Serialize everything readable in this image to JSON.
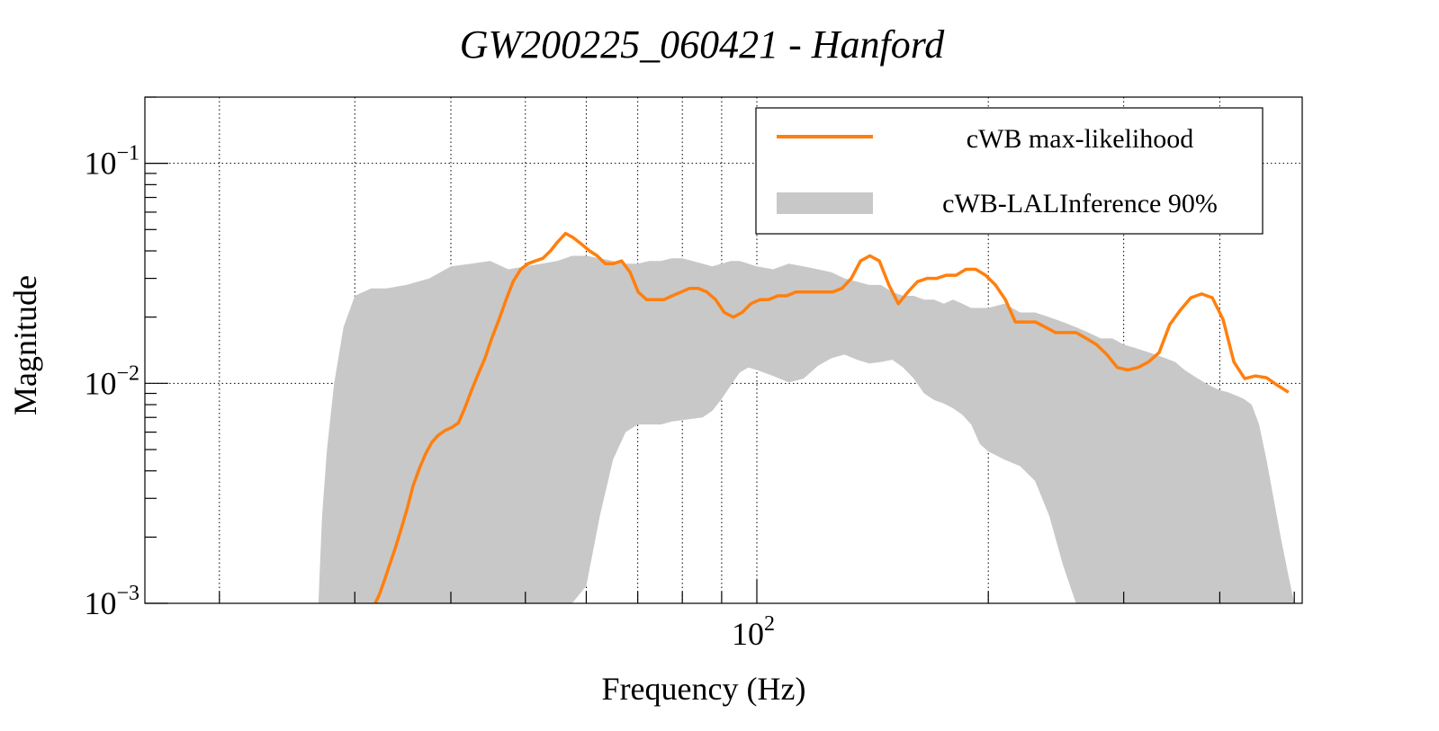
{
  "chart_data": {
    "type": "line",
    "title": "GW200225_060421 - Hanford",
    "xlabel": "Frequency (Hz)",
    "ylabel": "Magnitude",
    "xscale": "log",
    "yscale": "log",
    "xlim": [
      16,
      512
    ],
    "ylim": [
      0.001,
      0.2
    ],
    "grid": true,
    "legend_position": "top-right",
    "x_tick_labels": [
      {
        "value": 100,
        "base": "10",
        "exp": "2"
      }
    ],
    "y_tick_labels": [
      {
        "value": 0.1,
        "base": "10",
        "exp": "−1"
      },
      {
        "value": 0.01,
        "base": "10",
        "exp": "−2"
      },
      {
        "value": 0.001,
        "base": "10",
        "exp": "−3"
      }
    ],
    "x_grid": [
      20,
      30,
      40,
      50,
      60,
      70,
      80,
      90,
      100,
      200,
      300,
      400
    ],
    "y_grid": [
      0.01,
      0.1
    ],
    "colors": {
      "line": "#ff7f0e",
      "band": "#c8c8c8"
    },
    "series": [
      {
        "name": "cWB max-likelihood",
        "kind": "line",
        "x": [
          31.9,
          32.3,
          32.8,
          33.3,
          33.9,
          34.5,
          35.1,
          35.7,
          36.4,
          37.1,
          37.8,
          38.5,
          39.3,
          40.1,
          40.9,
          41.7,
          42.5,
          43.4,
          44.3,
          45.2,
          46.2,
          47.2,
          48.2,
          49.3,
          50.4,
          51.5,
          52.7,
          53.9,
          55.1,
          56.4,
          57.7,
          59.1,
          60.6,
          62.0,
          63.5,
          65.1,
          66.7,
          68.4,
          70.1,
          71.9,
          73.8,
          75.7,
          77.6,
          79.7,
          81.7,
          83.9,
          86.1,
          88.4,
          90.7,
          93.2,
          95.7,
          98.2,
          100.9,
          103.6,
          106.5,
          109.4,
          112.4,
          115.5,
          118.7,
          122.1,
          125.5,
          129.0,
          132.7,
          136.4,
          140.3,
          144.3,
          148.5,
          152.8,
          157.2,
          161.8,
          166.5,
          171.4,
          176.4,
          181.6,
          187.0,
          192.6,
          198.4,
          204.3,
          210.5,
          216.9,
          223.5,
          230.3,
          237.4,
          244.7,
          252.3,
          260.1,
          268.2,
          276.6,
          285.3,
          294.3,
          303.6,
          313.3,
          323.2,
          333.6,
          344.3,
          355.4,
          366.9,
          378.8,
          391.2,
          404.0,
          417.3,
          431.0,
          445.3,
          460.1,
          475.5,
          491.5
        ],
        "y": [
          0.001,
          0.0011,
          0.00128,
          0.0015,
          0.0018,
          0.0022,
          0.0027,
          0.0034,
          0.0041,
          0.0048,
          0.0054,
          0.0058,
          0.0061,
          0.0063,
          0.0066,
          0.0077,
          0.0092,
          0.011,
          0.013,
          0.016,
          0.0195,
          0.024,
          0.029,
          0.033,
          0.035,
          0.036,
          0.037,
          0.04,
          0.044,
          0.048,
          0.046,
          0.043,
          0.04,
          0.038,
          0.035,
          0.035,
          0.036,
          0.032,
          0.026,
          0.024,
          0.024,
          0.024,
          0.025,
          0.026,
          0.027,
          0.027,
          0.026,
          0.024,
          0.021,
          0.02,
          0.021,
          0.023,
          0.024,
          0.024,
          0.025,
          0.025,
          0.026,
          0.026,
          0.026,
          0.026,
          0.026,
          0.027,
          0.03,
          0.036,
          0.038,
          0.036,
          0.028,
          0.023,
          0.026,
          0.029,
          0.03,
          0.03,
          0.031,
          0.031,
          0.033,
          0.033,
          0.031,
          0.028,
          0.024,
          0.019,
          0.019,
          0.019,
          0.018,
          0.017,
          0.017,
          0.017,
          0.016,
          0.015,
          0.0135,
          0.0118,
          0.0115,
          0.0118,
          0.0125,
          0.0138,
          0.0185,
          0.0215,
          0.0245,
          0.0255,
          0.0245,
          0.0195,
          0.0125,
          0.0105,
          0.0108,
          0.0106,
          0.0098,
          0.0091
        ]
      },
      {
        "name": "cWB-LALInference 90%",
        "kind": "band",
        "x": [
          26.9,
          27.2,
          27.6,
          28.2,
          29,
          30,
          31.5,
          33,
          35,
          37.5,
          40,
          42.5,
          45,
          47.5,
          50,
          52.5,
          55,
          57.5,
          60,
          62.5,
          65,
          67.5,
          70,
          72.5,
          75,
          77.5,
          80,
          82.5,
          85,
          87.5,
          90,
          92.5,
          95,
          97.5,
          100,
          105,
          110,
          115,
          120,
          125,
          130,
          135,
          140,
          145,
          150,
          155,
          160,
          165,
          170,
          175,
          180,
          185,
          190,
          195,
          200,
          210,
          220,
          230,
          240,
          250,
          260,
          270,
          280,
          290,
          300,
          310,
          320,
          330,
          340,
          350,
          360,
          370,
          380,
          390,
          400,
          410,
          420,
          430,
          440,
          450,
          460,
          470,
          480,
          490,
          500,
          510
        ],
        "lower": [
          0.001,
          0.001,
          0.001,
          0.001,
          0.001,
          0.001,
          0.001,
          0.001,
          0.001,
          0.001,
          0.001,
          0.001,
          0.001,
          0.001,
          0.001,
          0.001,
          0.001,
          0.001,
          0.0012,
          0.0025,
          0.0045,
          0.006,
          0.0065,
          0.0065,
          0.0065,
          0.0067,
          0.0068,
          0.0069,
          0.007,
          0.0075,
          0.0085,
          0.0098,
          0.0112,
          0.0118,
          0.0115,
          0.0108,
          0.0101,
          0.0105,
          0.012,
          0.013,
          0.0135,
          0.0128,
          0.0123,
          0.0125,
          0.0128,
          0.0118,
          0.0105,
          0.009,
          0.0084,
          0.0081,
          0.0077,
          0.0072,
          0.0065,
          0.0053,
          0.0049,
          0.0045,
          0.0042,
          0.0036,
          0.0025,
          0.0015,
          0.001,
          0.001,
          0.001,
          0.001,
          0.001,
          0.001,
          0.001,
          0.001,
          0.001,
          0.001,
          0.001,
          0.001,
          0.001,
          0.001,
          0.001,
          0.001,
          0.001,
          0.001,
          0.001,
          0.001,
          0.001,
          0.001,
          0.001,
          0.001,
          0.001,
          0.001
        ],
        "upper": [
          0.001,
          0.0025,
          0.005,
          0.01,
          0.018,
          0.025,
          0.027,
          0.027,
          0.028,
          0.03,
          0.034,
          0.035,
          0.036,
          0.033,
          0.034,
          0.035,
          0.036,
          0.038,
          0.038,
          0.037,
          0.036,
          0.035,
          0.035,
          0.036,
          0.036,
          0.037,
          0.037,
          0.036,
          0.035,
          0.034,
          0.035,
          0.036,
          0.036,
          0.035,
          0.034,
          0.033,
          0.035,
          0.034,
          0.033,
          0.032,
          0.03,
          0.029,
          0.028,
          0.028,
          0.026,
          0.025,
          0.025,
          0.024,
          0.024,
          0.023,
          0.024,
          0.023,
          0.022,
          0.022,
          0.022,
          0.023,
          0.021,
          0.021,
          0.02,
          0.019,
          0.018,
          0.017,
          0.016,
          0.016,
          0.015,
          0.0145,
          0.014,
          0.0135,
          0.013,
          0.0125,
          0.0115,
          0.0108,
          0.0102,
          0.0097,
          0.0093,
          0.0091,
          0.0088,
          0.0085,
          0.008,
          0.0065,
          0.0045,
          0.003,
          0.002,
          0.0014,
          0.001,
          0.001
        ]
      }
    ]
  }
}
